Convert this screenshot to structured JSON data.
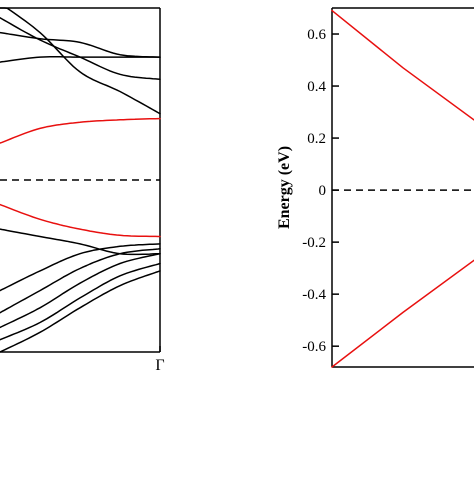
{
  "chart_data": [
    {
      "type": "line",
      "title": "",
      "xlabel": "",
      "ylabel": "",
      "x_tick_labels": [
        "Γ"
      ],
      "ylim": [
        -0.7,
        0.7
      ],
      "fermi_level": 0,
      "grid": false,
      "colors": {
        "bands": "#000000",
        "highlighted": "#e8100f",
        "fermi": "#000000"
      },
      "series": [
        {
          "color": "red",
          "x": [
            0,
            0.25,
            0.5,
            0.75,
            1.0
          ],
          "y": [
            0.15,
            0.21,
            0.235,
            0.245,
            0.25
          ]
        },
        {
          "color": "red",
          "x": [
            0,
            0.25,
            0.5,
            0.75,
            1.0
          ],
          "y": [
            -0.1,
            -0.16,
            -0.2,
            -0.225,
            -0.23
          ]
        },
        {
          "color": "black",
          "x": [
            0,
            0.25,
            0.5,
            0.75,
            1.0
          ],
          "y": [
            0.6,
            0.575,
            0.56,
            0.51,
            0.5
          ]
        },
        {
          "color": "black",
          "x": [
            0,
            0.25,
            0.5,
            0.75,
            1.0
          ],
          "y": [
            0.48,
            0.5,
            0.5,
            0.5,
            0.5
          ]
        },
        {
          "color": "black",
          "x": [
            0,
            0.25,
            0.5,
            0.75,
            1.0
          ],
          "y": [
            0.72,
            0.6,
            0.44,
            0.36,
            0.27
          ]
        },
        {
          "color": "black",
          "x": [
            0,
            0.25,
            0.5,
            0.75,
            1.0
          ],
          "y": [
            0.66,
            0.57,
            0.5,
            0.43,
            0.41
          ]
        },
        {
          "color": "black",
          "x": [
            0,
            0.25,
            0.5,
            0.75,
            1.0
          ],
          "y": [
            -0.2,
            -0.23,
            -0.26,
            -0.3,
            -0.3
          ]
        },
        {
          "color": "black",
          "x": [
            0,
            0.25,
            0.5,
            0.75,
            1.0
          ],
          "y": [
            -0.45,
            -0.37,
            -0.3,
            -0.27,
            -0.26
          ]
        },
        {
          "color": "black",
          "x": [
            0,
            0.25,
            0.5,
            0.75,
            1.0
          ],
          "y": [
            -0.54,
            -0.45,
            -0.36,
            -0.3,
            -0.28
          ]
        },
        {
          "color": "black",
          "x": [
            0,
            0.25,
            0.5,
            0.75,
            1.0
          ],
          "y": [
            -0.6,
            -0.52,
            -0.42,
            -0.34,
            -0.3
          ]
        },
        {
          "color": "black",
          "x": [
            0,
            0.25,
            0.5,
            0.75,
            1.0
          ],
          "y": [
            -0.65,
            -0.58,
            -0.48,
            -0.39,
            -0.34
          ]
        },
        {
          "color": "black",
          "x": [
            0,
            0.25,
            0.5,
            0.75,
            1.0
          ],
          "y": [
            -0.7,
            -0.62,
            -0.52,
            -0.43,
            -0.37
          ]
        }
      ]
    },
    {
      "type": "line",
      "title": "",
      "xlabel": "",
      "ylabel": "Energy (eV)",
      "yticks": [
        "0.6",
        "0.4",
        "0.2",
        "0",
        "-0.2",
        "-0.4",
        "-0.6"
      ],
      "ytick_values": [
        0.6,
        0.4,
        0.2,
        0,
        -0.2,
        -0.4,
        -0.6
      ],
      "ylim": [
        -0.68,
        0.7
      ],
      "fermi_level": 0,
      "grid": false,
      "colors": {
        "bands": "#e8100f",
        "fermi": "#000000"
      },
      "series": [
        {
          "color": "red",
          "x": [
            0,
            0.5,
            1.0
          ],
          "y": [
            0.69,
            0.47,
            0.27
          ]
        },
        {
          "color": "red",
          "x": [
            0,
            0.5,
            1.0
          ],
          "y": [
            -0.68,
            -0.47,
            -0.27
          ]
        }
      ]
    }
  ]
}
